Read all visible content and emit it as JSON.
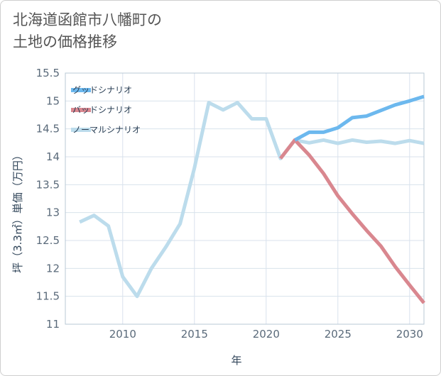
{
  "title_lines": [
    "北海道函館市八幡町の",
    "土地の価格推移"
  ],
  "chart_data": {
    "type": "line",
    "xlabel": "年",
    "ylabel": "坪（3.3㎡）単価（万円）",
    "xlim": [
      2006,
      2031
    ],
    "ylim": [
      11,
      15.5
    ],
    "x_ticks": [
      2010,
      2015,
      2020,
      2025,
      2030
    ],
    "y_ticks": [
      11,
      11.5,
      12,
      12.5,
      13,
      13.5,
      14,
      14.5,
      15,
      15.5
    ],
    "y_tick_labels": [
      "11",
      "11.5",
      "12",
      "12.5",
      "13",
      "13.5",
      "14",
      "14.5",
      "15",
      "15.5"
    ],
    "grid": true,
    "legend_position": "top-left",
    "series": [
      {
        "name": "グッドシナリオ",
        "color": "#6cb8ee",
        "x": [
          2022,
          2023,
          2024,
          2025,
          2026,
          2027,
          2028,
          2029,
          2030,
          2031
        ],
        "y": [
          14.3,
          14.44,
          14.44,
          14.52,
          14.7,
          14.73,
          14.83,
          14.93,
          15.0,
          15.08
        ]
      },
      {
        "name": "バッドシナリオ",
        "color": "#d9878f",
        "x": [
          2021,
          2022,
          2023,
          2024,
          2025,
          2026,
          2027,
          2028,
          2029,
          2030,
          2031
        ],
        "y": [
          13.97,
          14.3,
          14.03,
          13.7,
          13.3,
          12.98,
          12.68,
          12.4,
          12.03,
          11.7,
          11.38
        ]
      },
      {
        "name": "ノーマルシナリオ",
        "color": "#bcdcec",
        "x": [
          2007,
          2008,
          2009,
          2010,
          2011,
          2012,
          2013,
          2014,
          2015,
          2016,
          2017,
          2018,
          2019,
          2020,
          2021,
          2022,
          2023,
          2024,
          2025,
          2026,
          2027,
          2028,
          2029,
          2030,
          2031
        ],
        "y": [
          12.83,
          12.95,
          12.76,
          11.85,
          11.5,
          12.0,
          12.38,
          12.8,
          13.8,
          14.97,
          14.84,
          14.97,
          14.68,
          14.68,
          13.97,
          14.3,
          14.25,
          14.3,
          14.24,
          14.3,
          14.26,
          14.28,
          14.24,
          14.29,
          14.24
        ]
      }
    ]
  }
}
